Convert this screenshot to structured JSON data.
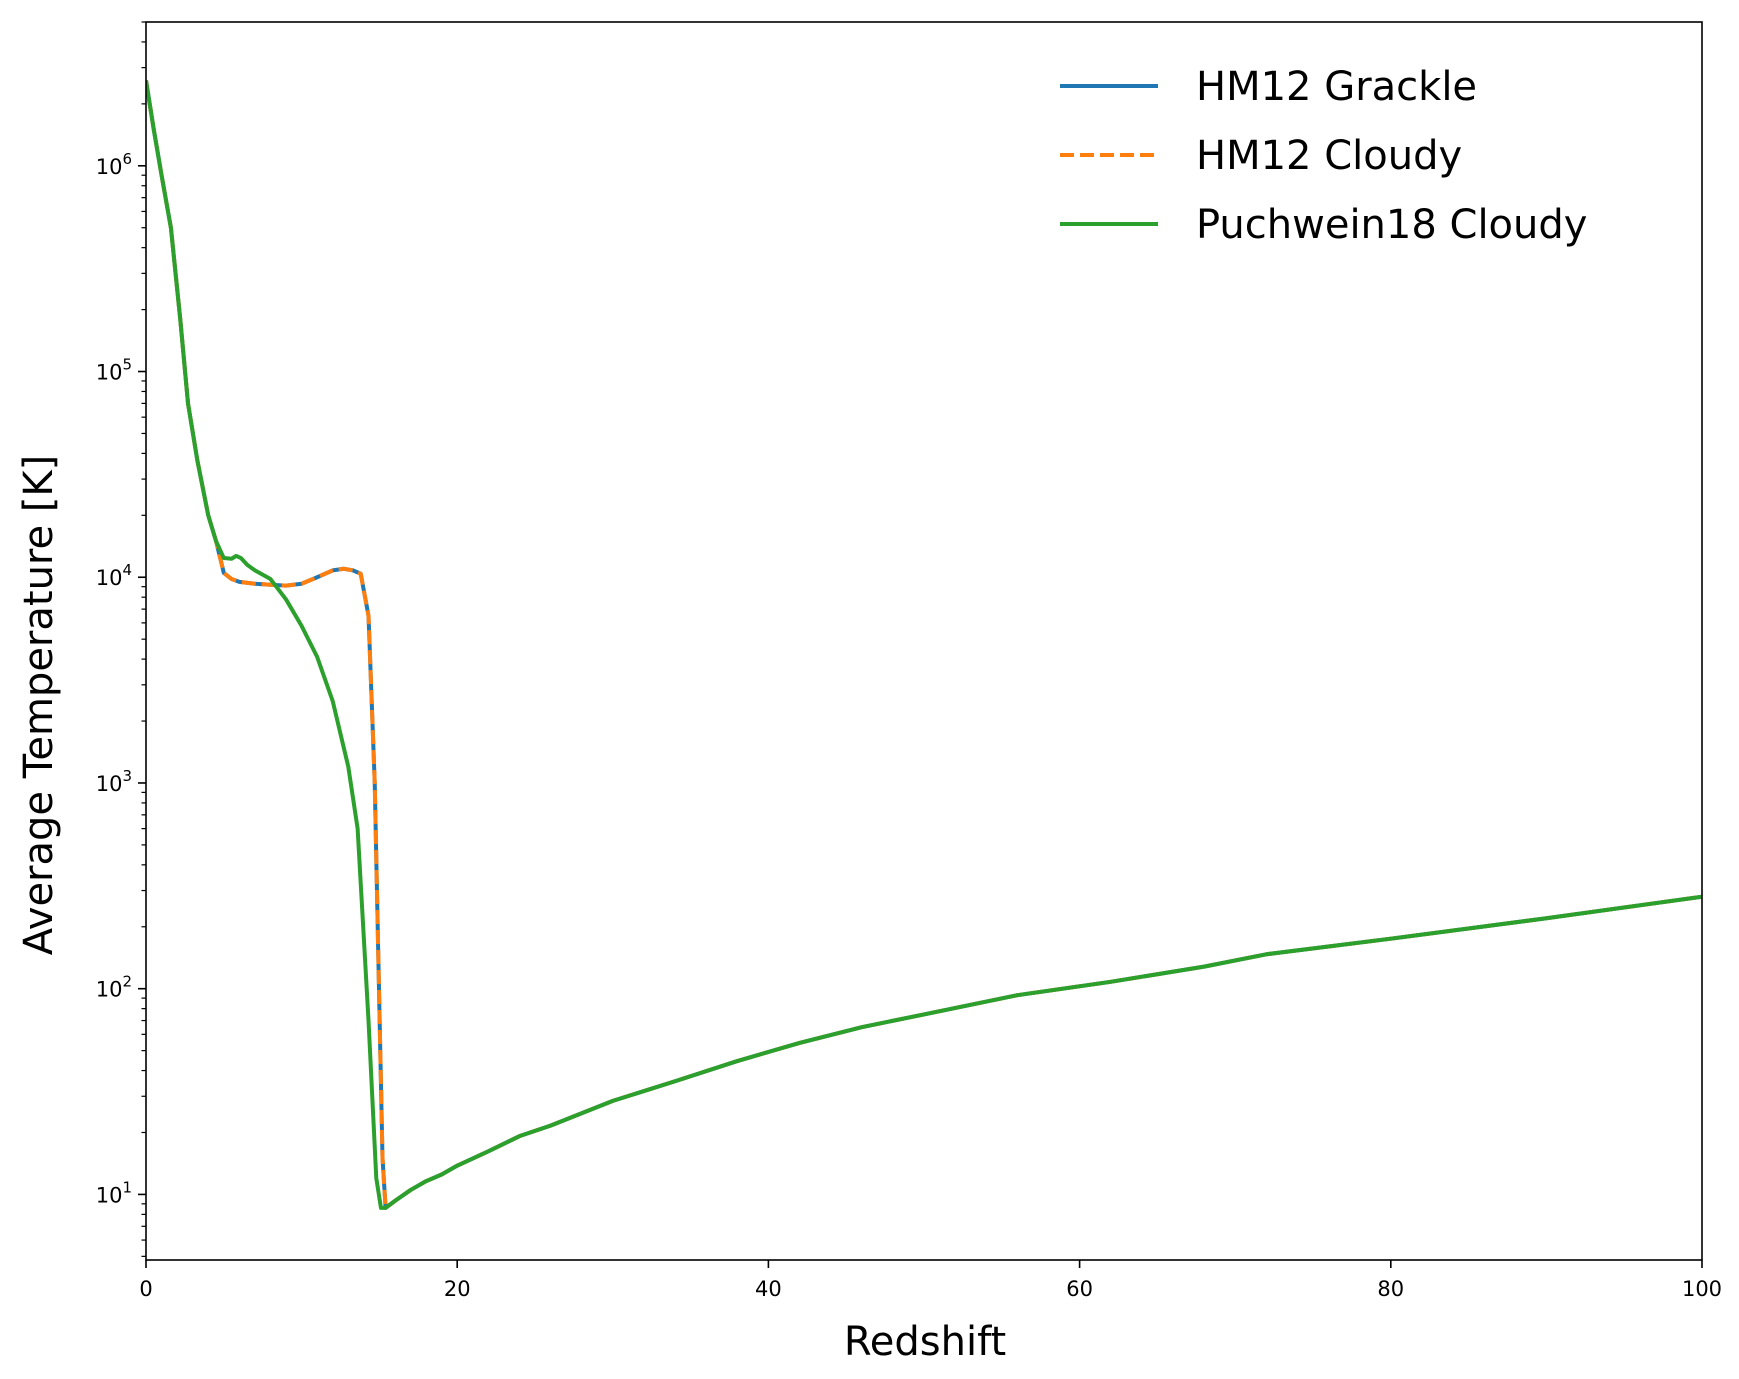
{
  "chart_data": {
    "type": "line",
    "xlabel": "Redshift",
    "ylabel": "Average Temperature [K]",
    "xlim": [
      0,
      100
    ],
    "ylim": [
      4.8,
      5000000
    ],
    "y_scale": "log",
    "x_ticks": [
      0,
      20,
      40,
      60,
      80,
      100
    ],
    "y_ticks": [
      {
        "value": 10,
        "base": "10",
        "exp": "1"
      },
      {
        "value": 100,
        "base": "10",
        "exp": "2"
      },
      {
        "value": 1000,
        "base": "10",
        "exp": "3"
      },
      {
        "value": 10000,
        "base": "10",
        "exp": "4"
      },
      {
        "value": 100000,
        "base": "10",
        "exp": "5"
      },
      {
        "value": 1000000,
        "base": "10",
        "exp": "6"
      }
    ],
    "grid": false,
    "legend_position": "top-right",
    "series": [
      {
        "name": "HM12 Grackle",
        "color": "#1f77b4",
        "style": "solid",
        "x": [
          0,
          0.5,
          1.0,
          1.6,
          2.2,
          2.7,
          3.3,
          4.0,
          4.5,
          5.0,
          5.5,
          6.0,
          7.0,
          8.0,
          9.0,
          10.0,
          11.0,
          12.0,
          12.7,
          13.3,
          13.8,
          14.3,
          14.7,
          15.0,
          15.2,
          15.4,
          16.0,
          17.0,
          18.0,
          19.0,
          20.0,
          22.0,
          24.0,
          26.0,
          30.0,
          34.0,
          38.0,
          42.0,
          46.0,
          50.0,
          56.0,
          62.0,
          68.0,
          72.0,
          80.0,
          90.0,
          100.0
        ],
        "y": [
          2600000,
          1500000,
          900000,
          500000,
          180000,
          70000,
          37000,
          20000,
          15000,
          10500,
          9800,
          9500,
          9300,
          9200,
          9100,
          9300,
          10000,
          10800,
          11000,
          10800,
          10400,
          6500,
          1000,
          80,
          15,
          8.6,
          9.3,
          10.5,
          11.6,
          12.5,
          13.8,
          16.2,
          19.2,
          21.6,
          28.5,
          35.5,
          44.5,
          54.5,
          65,
          75,
          93,
          108,
          128,
          147,
          175,
          220,
          280
        ]
      },
      {
        "name": "HM12 Cloudy",
        "color": "#ff7f0e",
        "style": "dashed",
        "x": [
          0,
          0.5,
          1.0,
          1.6,
          2.2,
          2.7,
          3.3,
          4.0,
          4.5,
          5.0,
          5.5,
          6.0,
          7.0,
          8.0,
          9.0,
          10.0,
          11.0,
          12.0,
          12.7,
          13.3,
          13.8,
          14.3,
          14.7,
          15.0,
          15.2,
          15.4,
          16.0,
          17.0,
          18.0,
          19.0,
          20.0,
          22.0,
          24.0,
          26.0,
          30.0,
          34.0,
          38.0,
          42.0,
          46.0,
          50.0,
          56.0,
          62.0,
          68.0,
          72.0,
          80.0,
          90.0,
          100.0
        ],
        "y": [
          2600000,
          1500000,
          900000,
          500000,
          180000,
          70000,
          37000,
          20000,
          15000,
          10500,
          9800,
          9500,
          9300,
          9200,
          9100,
          9300,
          10000,
          10800,
          11000,
          10800,
          10400,
          6500,
          1000,
          80,
          15,
          8.6,
          9.3,
          10.5,
          11.6,
          12.5,
          13.8,
          16.2,
          19.2,
          21.6,
          28.5,
          35.5,
          44.5,
          54.5,
          65,
          75,
          93,
          108,
          128,
          147,
          175,
          220,
          280
        ]
      },
      {
        "name": "Puchwein18 Cloudy",
        "color": "#2ca02c",
        "style": "solid",
        "x": [
          0,
          0.5,
          1.0,
          1.6,
          2.2,
          2.7,
          3.3,
          4.0,
          4.5,
          5.0,
          5.5,
          5.8,
          6.1,
          6.5,
          7.0,
          8.0,
          9.0,
          10.0,
          11.0,
          12.0,
          13.0,
          13.6,
          14.3,
          14.8,
          15.1,
          15.4,
          16.0,
          17.0,
          18.0,
          19.0,
          20.0,
          22.0,
          24.0,
          26.0,
          30.0,
          34.0,
          38.0,
          42.0,
          46.0,
          50.0,
          56.0,
          62.0,
          68.0,
          72.0,
          80.0,
          90.0,
          100.0
        ],
        "y": [
          2600000,
          1500000,
          900000,
          500000,
          180000,
          70000,
          37000,
          20000,
          15000,
          12400,
          12300,
          12700,
          12400,
          11500,
          10800,
          9800,
          7800,
          5800,
          4100,
          2500,
          1200,
          600,
          70,
          12,
          8.6,
          8.6,
          9.3,
          10.5,
          11.6,
          12.5,
          13.8,
          16.2,
          19.2,
          21.6,
          28.5,
          35.5,
          44.5,
          54.5,
          65,
          75,
          93,
          108,
          128,
          147,
          175,
          220,
          280
        ]
      }
    ]
  }
}
